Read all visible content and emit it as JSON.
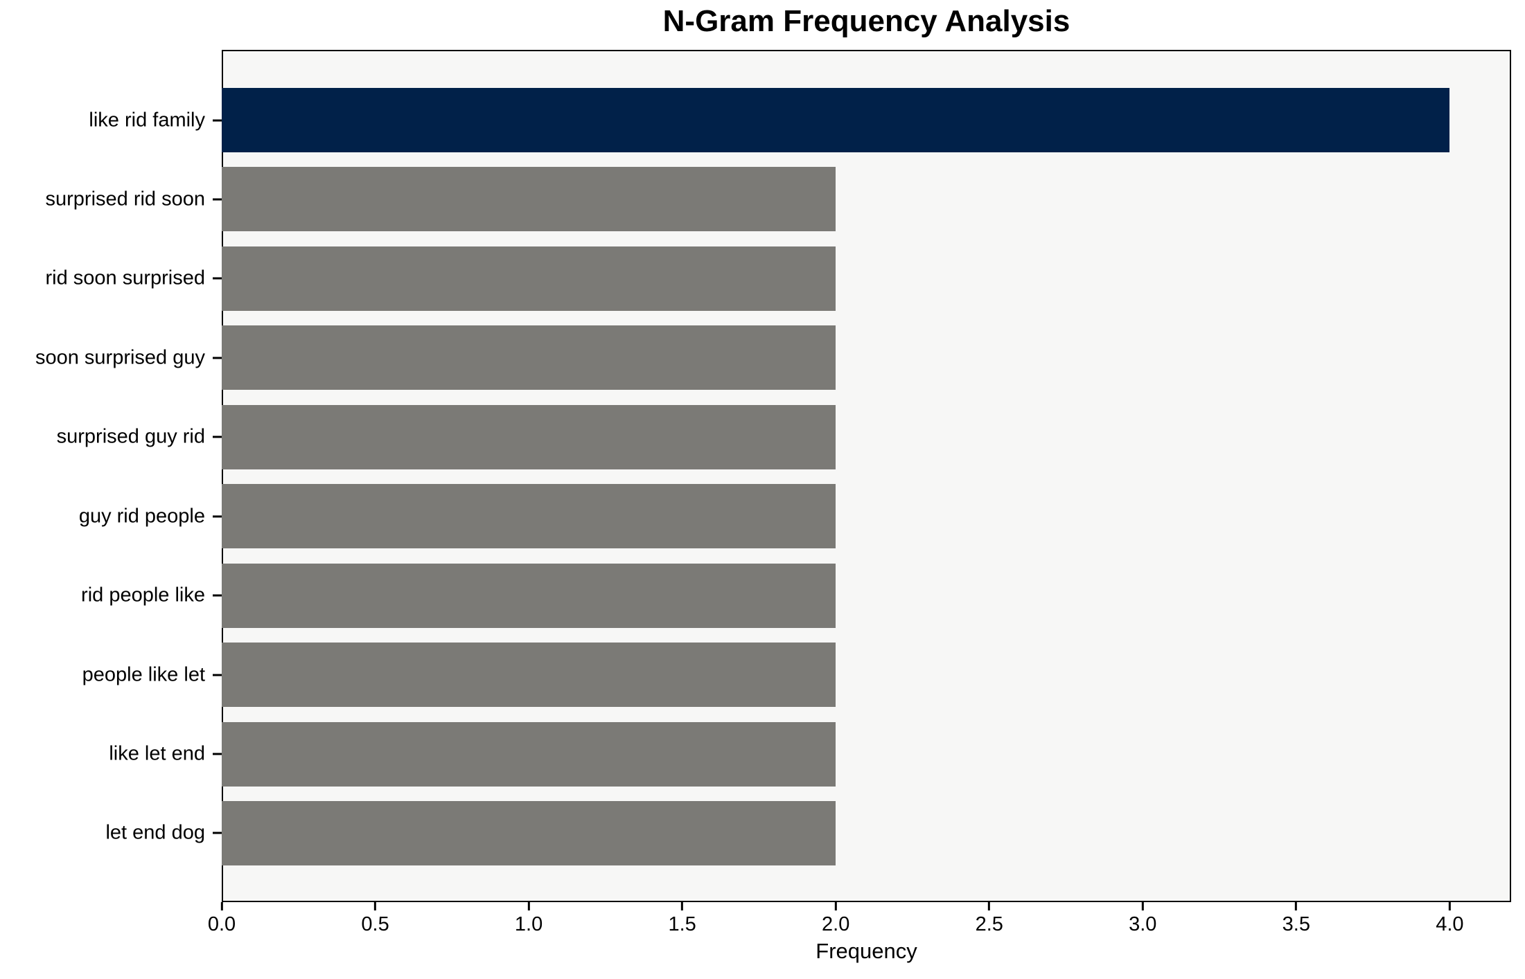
{
  "chart_data": {
    "type": "bar",
    "orientation": "horizontal",
    "title": "N-Gram Frequency Analysis",
    "xlabel": "Frequency",
    "ylabel": "",
    "categories": [
      "like rid family",
      "surprised rid soon",
      "rid soon surprised",
      "soon surprised guy",
      "surprised guy rid",
      "guy rid people",
      "rid people like",
      "people like let",
      "like let end",
      "let end dog"
    ],
    "values": [
      4,
      2,
      2,
      2,
      2,
      2,
      2,
      2,
      2,
      2
    ],
    "bar_colors": [
      "#012149",
      "#7b7a76",
      "#7b7a76",
      "#7b7a76",
      "#7b7a76",
      "#7b7a76",
      "#7b7a76",
      "#7b7a76",
      "#7b7a76",
      "#7b7a76"
    ],
    "xlim": [
      0,
      4.2
    ],
    "x_ticks": [
      0.0,
      0.5,
      1.0,
      1.5,
      2.0,
      2.5,
      3.0,
      3.5,
      4.0
    ],
    "x_tick_labels": [
      "0.0",
      "0.5",
      "1.0",
      "1.5",
      "2.0",
      "2.5",
      "3.0",
      "3.5",
      "4.0"
    ],
    "grid": false,
    "legend": false,
    "plot_background": "#f7f7f6",
    "figure_background": "#ffffff",
    "spine_color": "#000000"
  }
}
